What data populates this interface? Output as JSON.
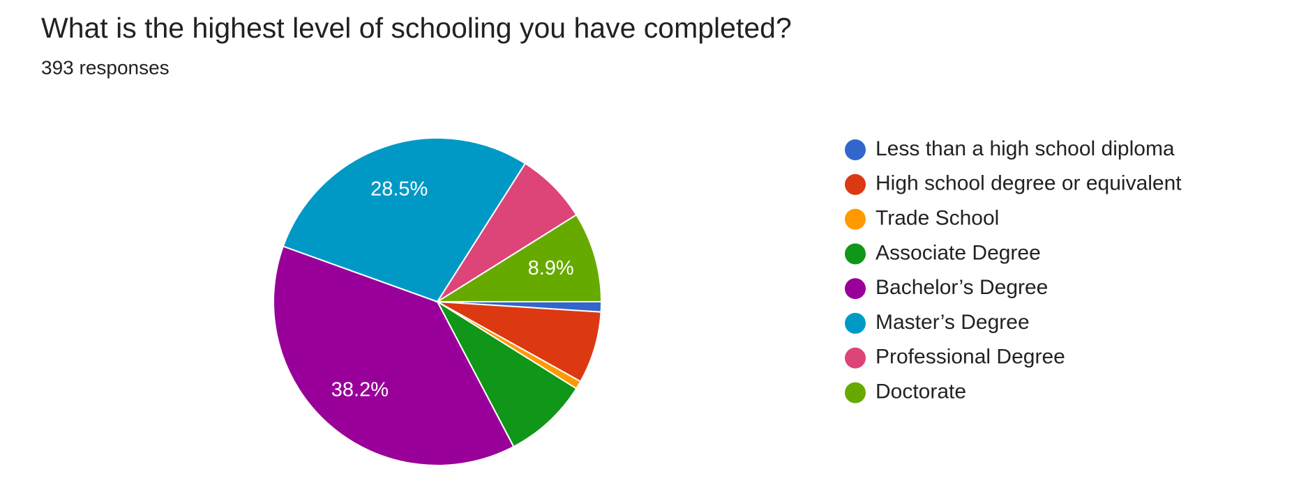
{
  "chart_data": {
    "type": "pie",
    "title": "What is the highest level of schooling you have completed?",
    "subtitle": "393 responses",
    "categories": [
      "Less than a high school diploma",
      "High school degree or equivalent",
      "Trade School",
      "Associate Degree",
      "Bachelor’s Degree",
      "Master’s Degree",
      "Professional Degree",
      "Doctorate"
    ],
    "values": [
      1.0,
      7.1,
      0.8,
      8.4,
      38.2,
      28.5,
      7.1,
      8.9
    ],
    "value_labels": [
      null,
      null,
      null,
      null,
      "38.2%",
      "28.5%",
      null,
      "8.9%"
    ],
    "colors": [
      "#3366cc",
      "#dc3912",
      "#ff9900",
      "#109618",
      "#990099",
      "#0099c6",
      "#dd4477",
      "#66aa00"
    ]
  }
}
